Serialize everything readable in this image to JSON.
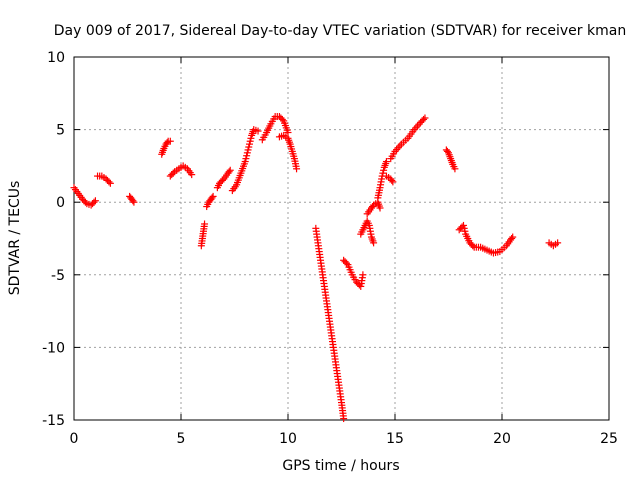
{
  "chart_data": {
    "type": "scatter",
    "title": "Day 009 of 2017, Sidereal Day-to-day VTEC variation (SDTVAR) for receiver kman",
    "xlabel": "GPS time / hours",
    "ylabel": "SDTVAR / TECUs",
    "xlim": [
      0,
      25
    ],
    "ylim": [
      -15,
      10
    ],
    "xticks": [
      0,
      5,
      10,
      15,
      20,
      25
    ],
    "yticks": [
      -15,
      -10,
      -5,
      0,
      5,
      10
    ],
    "grid": true,
    "marker": "+",
    "marker_color": "#ff0000",
    "segments": [
      {
        "x": [
          0.0,
          0.2,
          0.4,
          0.6,
          0.8,
          1.0
        ],
        "y": [
          1.0,
          0.6,
          0.2,
          -0.1,
          -0.2,
          0.1
        ]
      },
      {
        "x": [
          1.1,
          1.3,
          1.5,
          1.7
        ],
        "y": [
          1.8,
          1.8,
          1.6,
          1.3
        ]
      },
      {
        "x": [
          2.6,
          2.7,
          2.8
        ],
        "y": [
          0.4,
          0.2,
          0.0
        ]
      },
      {
        "x": [
          4.1,
          4.2,
          4.3,
          4.4,
          4.5
        ],
        "y": [
          3.3,
          3.7,
          4.0,
          4.2,
          4.2
        ]
      },
      {
        "x": [
          4.5,
          4.7,
          4.9,
          5.1,
          5.3,
          5.5
        ],
        "y": [
          1.8,
          2.1,
          2.3,
          2.5,
          2.3,
          1.9
        ]
      },
      {
        "x": [
          5.95,
          6.0,
          6.05,
          6.1
        ],
        "y": [
          -3.0,
          -2.5,
          -2.0,
          -1.5
        ]
      },
      {
        "x": [
          6.2,
          6.3,
          6.4,
          6.5
        ],
        "y": [
          -0.3,
          0.0,
          0.2,
          0.4
        ]
      },
      {
        "x": [
          6.7,
          6.8,
          7.0,
          7.2,
          7.3
        ],
        "y": [
          1.0,
          1.3,
          1.6,
          2.0,
          2.2
        ]
      },
      {
        "x": [
          7.4,
          7.6,
          7.8,
          8.0,
          8.2,
          8.3,
          8.4,
          8.6
        ],
        "y": [
          0.8,
          1.2,
          2.0,
          2.8,
          4.0,
          4.6,
          5.0,
          4.9
        ]
      },
      {
        "x": [
          8.8,
          9.0,
          9.2,
          9.4,
          9.6,
          9.8,
          10.0
        ],
        "y": [
          4.3,
          4.8,
          5.4,
          5.9,
          5.9,
          5.6,
          4.8
        ]
      },
      {
        "x": [
          9.6,
          9.8,
          10.0,
          10.1,
          10.2,
          10.3,
          10.4
        ],
        "y": [
          4.5,
          4.6,
          4.4,
          4.0,
          3.5,
          3.0,
          2.3
        ]
      },
      {
        "x": [
          11.3,
          11.5,
          11.7,
          11.9,
          12.1,
          12.3,
          12.5,
          12.6
        ],
        "y": [
          -1.8,
          -3.8,
          -5.8,
          -7.8,
          -9.8,
          -11.8,
          -13.8,
          -14.9
        ]
      },
      {
        "x": [
          12.6,
          12.8,
          13.0,
          13.2,
          13.4,
          13.5
        ],
        "y": [
          -4.0,
          -4.3,
          -5.0,
          -5.5,
          -5.8,
          -5.0
        ]
      },
      {
        "x": [
          13.4,
          13.6,
          13.7,
          13.8,
          13.9,
          14.0
        ],
        "y": [
          -2.2,
          -1.6,
          -1.3,
          -1.6,
          -2.4,
          -2.8
        ]
      },
      {
        "x": [
          13.7,
          13.9,
          14.0,
          14.2,
          14.3
        ],
        "y": [
          -0.8,
          -0.4,
          -0.2,
          0.0,
          -0.4
        ]
      },
      {
        "x": [
          14.2,
          14.3,
          14.4,
          14.5,
          14.6
        ],
        "y": [
          0.3,
          1.0,
          1.8,
          2.4,
          2.8
        ]
      },
      {
        "x": [
          14.6,
          14.8,
          14.9
        ],
        "y": [
          1.8,
          1.6,
          1.4
        ]
      },
      {
        "x": [
          14.8,
          15.0,
          15.3,
          15.6,
          15.9,
          16.2,
          16.4
        ],
        "y": [
          3.0,
          3.5,
          4.0,
          4.4,
          5.0,
          5.5,
          5.8
        ]
      },
      {
        "x": [
          17.4,
          17.5,
          17.6,
          17.7,
          17.8
        ],
        "y": [
          3.6,
          3.4,
          3.0,
          2.6,
          2.3
        ]
      },
      {
        "x": [
          18.0,
          18.2,
          18.3,
          18.5,
          18.7,
          19.0,
          19.3,
          19.6,
          19.9,
          20.2,
          20.4,
          20.5
        ],
        "y": [
          -1.9,
          -1.6,
          -2.2,
          -2.8,
          -3.1,
          -3.1,
          -3.3,
          -3.5,
          -3.4,
          -3.0,
          -2.6,
          -2.4
        ]
      },
      {
        "x": [
          22.2,
          22.4,
          22.6
        ],
        "y": [
          -2.8,
          -3.0,
          -2.8
        ]
      }
    ]
  }
}
